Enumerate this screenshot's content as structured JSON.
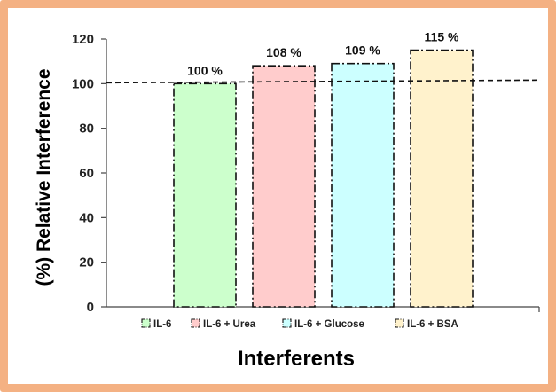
{
  "chart_data": {
    "type": "bar",
    "categories": [
      "IL-6",
      "IL-6 + Urea",
      "IL-6 + Glucose",
      "IL-6 + BSA"
    ],
    "values": [
      100,
      108,
      109,
      115
    ],
    "data_labels": [
      "100 %",
      "108 %",
      "109 %",
      "115 %"
    ],
    "colors": [
      "#CCFFCC",
      "#FFCCCC",
      "#CCFFFF",
      "#FFF2CC"
    ],
    "xlabel": "Interferents",
    "ylabel": "(%) Relative Interference",
    "ylim": [
      0,
      120
    ],
    "yticks": [
      0,
      20,
      40,
      60,
      80,
      100,
      120
    ],
    "reference_line": 100,
    "legend_position": "bottom",
    "grid": false,
    "frame_color": "#F4B183"
  }
}
